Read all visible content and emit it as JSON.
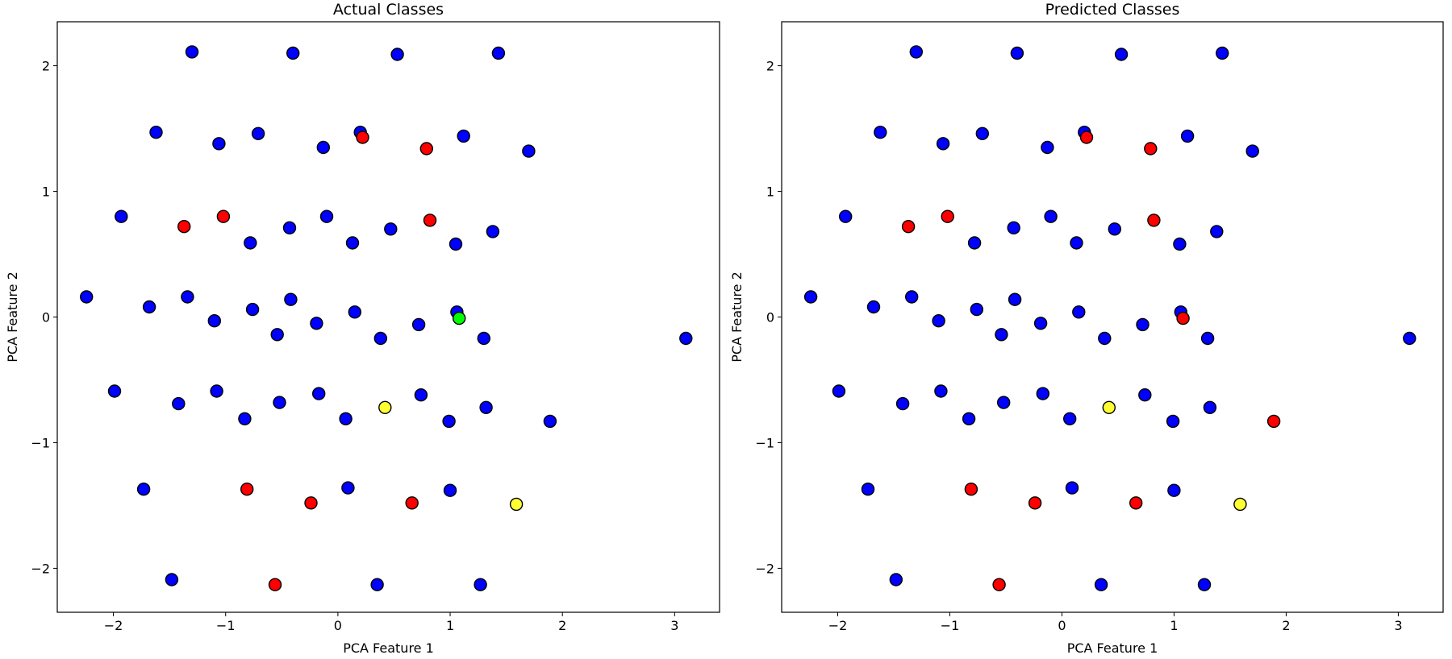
{
  "colors": {
    "marker_edge": "#000000",
    "class_colors": [
      "#0000ff",
      "#ff0000",
      "#ffff33",
      "#00ff00"
    ]
  },
  "chart_data": [
    {
      "type": "scatter",
      "title": "Actual Classes",
      "xlabel": "PCA Feature 1",
      "ylabel": "PCA Feature 2",
      "xlim": [
        -2.5,
        3.4
      ],
      "ylim": [
        -2.35,
        2.35
      ],
      "xticks": [
        -2,
        -1,
        0,
        1,
        2,
        3
      ],
      "yticks": [
        -2,
        -1,
        0,
        1,
        2
      ],
      "x_tick_labels": [
        "−2",
        "−1",
        "0",
        "1",
        "2",
        "3"
      ],
      "y_tick_labels": [
        "−2",
        "−1",
        "0",
        "1",
        "2"
      ],
      "grid": false,
      "points": [
        {
          "x": -1.3,
          "y": 2.11,
          "c": "blue"
        },
        {
          "x": -0.4,
          "y": 2.1,
          "c": "blue"
        },
        {
          "x": 0.53,
          "y": 2.09,
          "c": "blue"
        },
        {
          "x": 1.43,
          "y": 2.1,
          "c": "blue"
        },
        {
          "x": -1.62,
          "y": 1.47,
          "c": "blue"
        },
        {
          "x": -1.06,
          "y": 1.38,
          "c": "blue"
        },
        {
          "x": -0.71,
          "y": 1.46,
          "c": "blue"
        },
        {
          "x": -0.13,
          "y": 1.35,
          "c": "blue"
        },
        {
          "x": 0.2,
          "y": 1.47,
          "c": "blue"
        },
        {
          "x": 0.22,
          "y": 1.43,
          "c": "red"
        },
        {
          "x": 0.79,
          "y": 1.34,
          "c": "red"
        },
        {
          "x": 1.12,
          "y": 1.44,
          "c": "blue"
        },
        {
          "x": 1.7,
          "y": 1.32,
          "c": "blue"
        },
        {
          "x": -1.93,
          "y": 0.8,
          "c": "blue"
        },
        {
          "x": -1.37,
          "y": 0.72,
          "c": "red"
        },
        {
          "x": -1.02,
          "y": 0.8,
          "c": "red"
        },
        {
          "x": -0.78,
          "y": 0.59,
          "c": "blue"
        },
        {
          "x": -0.43,
          "y": 0.71,
          "c": "blue"
        },
        {
          "x": -0.1,
          "y": 0.8,
          "c": "blue"
        },
        {
          "x": 0.13,
          "y": 0.59,
          "c": "blue"
        },
        {
          "x": 0.47,
          "y": 0.7,
          "c": "blue"
        },
        {
          "x": 0.82,
          "y": 0.77,
          "c": "red"
        },
        {
          "x": 1.05,
          "y": 0.58,
          "c": "blue"
        },
        {
          "x": 1.38,
          "y": 0.68,
          "c": "blue"
        },
        {
          "x": -2.24,
          "y": 0.16,
          "c": "blue"
        },
        {
          "x": -1.68,
          "y": 0.08,
          "c": "blue"
        },
        {
          "x": -1.34,
          "y": 0.16,
          "c": "blue"
        },
        {
          "x": -1.1,
          "y": -0.03,
          "c": "blue"
        },
        {
          "x": -0.76,
          "y": 0.06,
          "c": "blue"
        },
        {
          "x": -0.54,
          "y": -0.14,
          "c": "blue"
        },
        {
          "x": -0.42,
          "y": 0.14,
          "c": "blue"
        },
        {
          "x": -0.19,
          "y": -0.05,
          "c": "blue"
        },
        {
          "x": 0.15,
          "y": 0.04,
          "c": "blue"
        },
        {
          "x": 0.38,
          "y": -0.17,
          "c": "blue"
        },
        {
          "x": 0.72,
          "y": -0.06,
          "c": "blue"
        },
        {
          "x": 1.06,
          "y": 0.04,
          "c": "blue"
        },
        {
          "x": 1.08,
          "y": -0.01,
          "c": "green"
        },
        {
          "x": 1.3,
          "y": -0.17,
          "c": "blue"
        },
        {
          "x": 3.1,
          "y": -0.17,
          "c": "blue"
        },
        {
          "x": -1.99,
          "y": -0.59,
          "c": "blue"
        },
        {
          "x": -1.42,
          "y": -0.69,
          "c": "blue"
        },
        {
          "x": -1.08,
          "y": -0.59,
          "c": "blue"
        },
        {
          "x": -0.83,
          "y": -0.81,
          "c": "blue"
        },
        {
          "x": -0.52,
          "y": -0.68,
          "c": "blue"
        },
        {
          "x": -0.17,
          "y": -0.61,
          "c": "blue"
        },
        {
          "x": 0.07,
          "y": -0.81,
          "c": "blue"
        },
        {
          "x": 0.42,
          "y": -0.72,
          "c": "yellow"
        },
        {
          "x": 0.74,
          "y": -0.62,
          "c": "blue"
        },
        {
          "x": 0.99,
          "y": -0.83,
          "c": "blue"
        },
        {
          "x": 1.32,
          "y": -0.72,
          "c": "blue"
        },
        {
          "x": 1.89,
          "y": -0.83,
          "c": "blue"
        },
        {
          "x": -1.73,
          "y": -1.37,
          "c": "blue"
        },
        {
          "x": -0.81,
          "y": -1.37,
          "c": "red"
        },
        {
          "x": -0.24,
          "y": -1.48,
          "c": "red"
        },
        {
          "x": 0.09,
          "y": -1.36,
          "c": "blue"
        },
        {
          "x": 0.66,
          "y": -1.48,
          "c": "red"
        },
        {
          "x": 1.0,
          "y": -1.38,
          "c": "blue"
        },
        {
          "x": 1.59,
          "y": -1.49,
          "c": "yellow"
        },
        {
          "x": -1.48,
          "y": -2.09,
          "c": "blue"
        },
        {
          "x": -0.56,
          "y": -2.13,
          "c": "red"
        },
        {
          "x": 0.35,
          "y": -2.13,
          "c": "blue"
        },
        {
          "x": 1.27,
          "y": -2.13,
          "c": "blue"
        }
      ]
    },
    {
      "type": "scatter",
      "title": "Predicted Classes",
      "xlabel": "PCA Feature 1",
      "ylabel": "PCA Feature 2",
      "xlim": [
        -2.5,
        3.4
      ],
      "ylim": [
        -2.35,
        2.35
      ],
      "xticks": [
        -2,
        -1,
        0,
        1,
        2,
        3
      ],
      "yticks": [
        -2,
        -1,
        0,
        1,
        2
      ],
      "x_tick_labels": [
        "−2",
        "−1",
        "0",
        "1",
        "2",
        "3"
      ],
      "y_tick_labels": [
        "−2",
        "−1",
        "0",
        "1",
        "2"
      ],
      "grid": false,
      "points": [
        {
          "x": -1.3,
          "y": 2.11,
          "c": "blue"
        },
        {
          "x": -0.4,
          "y": 2.1,
          "c": "blue"
        },
        {
          "x": 0.53,
          "y": 2.09,
          "c": "blue"
        },
        {
          "x": 1.43,
          "y": 2.1,
          "c": "blue"
        },
        {
          "x": -1.62,
          "y": 1.47,
          "c": "blue"
        },
        {
          "x": -1.06,
          "y": 1.38,
          "c": "blue"
        },
        {
          "x": -0.71,
          "y": 1.46,
          "c": "blue"
        },
        {
          "x": -0.13,
          "y": 1.35,
          "c": "blue"
        },
        {
          "x": 0.2,
          "y": 1.47,
          "c": "blue"
        },
        {
          "x": 0.22,
          "y": 1.43,
          "c": "red"
        },
        {
          "x": 0.79,
          "y": 1.34,
          "c": "red"
        },
        {
          "x": 1.12,
          "y": 1.44,
          "c": "blue"
        },
        {
          "x": 1.7,
          "y": 1.32,
          "c": "blue"
        },
        {
          "x": -1.93,
          "y": 0.8,
          "c": "blue"
        },
        {
          "x": -1.37,
          "y": 0.72,
          "c": "red"
        },
        {
          "x": -1.02,
          "y": 0.8,
          "c": "red"
        },
        {
          "x": -0.78,
          "y": 0.59,
          "c": "blue"
        },
        {
          "x": -0.43,
          "y": 0.71,
          "c": "blue"
        },
        {
          "x": -0.1,
          "y": 0.8,
          "c": "blue"
        },
        {
          "x": 0.13,
          "y": 0.59,
          "c": "blue"
        },
        {
          "x": 0.47,
          "y": 0.7,
          "c": "blue"
        },
        {
          "x": 0.82,
          "y": 0.77,
          "c": "red"
        },
        {
          "x": 1.05,
          "y": 0.58,
          "c": "blue"
        },
        {
          "x": 1.38,
          "y": 0.68,
          "c": "blue"
        },
        {
          "x": -2.24,
          "y": 0.16,
          "c": "blue"
        },
        {
          "x": -1.68,
          "y": 0.08,
          "c": "blue"
        },
        {
          "x": -1.34,
          "y": 0.16,
          "c": "blue"
        },
        {
          "x": -1.1,
          "y": -0.03,
          "c": "blue"
        },
        {
          "x": -0.76,
          "y": 0.06,
          "c": "blue"
        },
        {
          "x": -0.54,
          "y": -0.14,
          "c": "blue"
        },
        {
          "x": -0.42,
          "y": 0.14,
          "c": "blue"
        },
        {
          "x": -0.19,
          "y": -0.05,
          "c": "blue"
        },
        {
          "x": 0.15,
          "y": 0.04,
          "c": "blue"
        },
        {
          "x": 0.38,
          "y": -0.17,
          "c": "blue"
        },
        {
          "x": 0.72,
          "y": -0.06,
          "c": "blue"
        },
        {
          "x": 1.06,
          "y": 0.04,
          "c": "blue"
        },
        {
          "x": 1.08,
          "y": -0.01,
          "c": "red"
        },
        {
          "x": 1.3,
          "y": -0.17,
          "c": "blue"
        },
        {
          "x": 3.1,
          "y": -0.17,
          "c": "blue"
        },
        {
          "x": -1.99,
          "y": -0.59,
          "c": "blue"
        },
        {
          "x": -1.42,
          "y": -0.69,
          "c": "blue"
        },
        {
          "x": -1.08,
          "y": -0.59,
          "c": "blue"
        },
        {
          "x": -0.83,
          "y": -0.81,
          "c": "blue"
        },
        {
          "x": -0.52,
          "y": -0.68,
          "c": "blue"
        },
        {
          "x": -0.17,
          "y": -0.61,
          "c": "blue"
        },
        {
          "x": 0.07,
          "y": -0.81,
          "c": "blue"
        },
        {
          "x": 0.42,
          "y": -0.72,
          "c": "yellow"
        },
        {
          "x": 0.74,
          "y": -0.62,
          "c": "blue"
        },
        {
          "x": 0.99,
          "y": -0.83,
          "c": "blue"
        },
        {
          "x": 1.32,
          "y": -0.72,
          "c": "blue"
        },
        {
          "x": 1.89,
          "y": -0.83,
          "c": "red"
        },
        {
          "x": -1.73,
          "y": -1.37,
          "c": "blue"
        },
        {
          "x": -0.81,
          "y": -1.37,
          "c": "red"
        },
        {
          "x": -0.24,
          "y": -1.48,
          "c": "red"
        },
        {
          "x": 0.09,
          "y": -1.36,
          "c": "blue"
        },
        {
          "x": 0.66,
          "y": -1.48,
          "c": "red"
        },
        {
          "x": 1.0,
          "y": -1.38,
          "c": "blue"
        },
        {
          "x": 1.59,
          "y": -1.49,
          "c": "yellow"
        },
        {
          "x": -1.48,
          "y": -2.09,
          "c": "blue"
        },
        {
          "x": -0.56,
          "y": -2.13,
          "c": "red"
        },
        {
          "x": 0.35,
          "y": -2.13,
          "c": "blue"
        },
        {
          "x": 1.27,
          "y": -2.13,
          "c": "blue"
        }
      ]
    }
  ]
}
